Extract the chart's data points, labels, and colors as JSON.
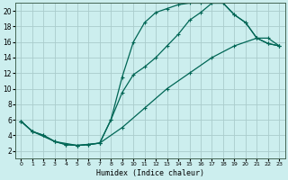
{
  "xlabel": "Humidex (Indice chaleur)",
  "bg_color": "#cceeee",
  "grid_color": "#aacccc",
  "line_color": "#006655",
  "xlim": [
    -0.5,
    23.5
  ],
  "ylim": [
    1,
    21
  ],
  "xticks": [
    0,
    1,
    2,
    3,
    4,
    5,
    6,
    7,
    8,
    9,
    10,
    11,
    12,
    13,
    14,
    15,
    16,
    17,
    18,
    19,
    20,
    21,
    22,
    23
  ],
  "yticks": [
    2,
    4,
    6,
    8,
    10,
    12,
    14,
    16,
    18,
    20
  ],
  "line1_x": [
    0,
    1,
    2,
    3,
    4,
    5,
    6,
    7,
    8,
    9,
    10,
    11,
    12,
    13,
    14,
    15,
    16,
    17,
    18,
    19,
    20,
    21,
    22,
    23
  ],
  "line1_y": [
    5.8,
    4.5,
    4.0,
    3.2,
    2.8,
    2.7,
    2.8,
    3.0,
    6.0,
    11.5,
    16.0,
    18.5,
    19.8,
    20.3,
    20.8,
    21.0,
    21.0,
    21.0,
    21.0,
    19.5,
    18.5,
    16.5,
    15.8,
    15.5
  ],
  "line2_x": [
    0,
    1,
    2,
    3,
    4,
    5,
    6,
    7,
    8,
    9,
    10,
    11,
    12,
    13,
    14,
    15,
    16,
    17,
    18,
    19,
    20,
    21,
    22,
    23
  ],
  "line2_y": [
    5.8,
    4.5,
    4.0,
    3.2,
    2.8,
    2.7,
    2.8,
    3.0,
    6.0,
    9.5,
    11.8,
    12.8,
    14.0,
    15.5,
    17.0,
    18.8,
    19.8,
    21.0,
    21.0,
    19.5,
    18.5,
    16.5,
    15.8,
    15.5
  ],
  "line3_x": [
    0,
    1,
    3,
    5,
    7,
    9,
    11,
    13,
    15,
    17,
    19,
    21,
    22,
    23
  ],
  "line3_y": [
    5.8,
    4.5,
    3.2,
    2.7,
    3.0,
    5.0,
    7.5,
    10.0,
    12.0,
    14.0,
    15.5,
    16.5,
    16.5,
    15.5
  ]
}
